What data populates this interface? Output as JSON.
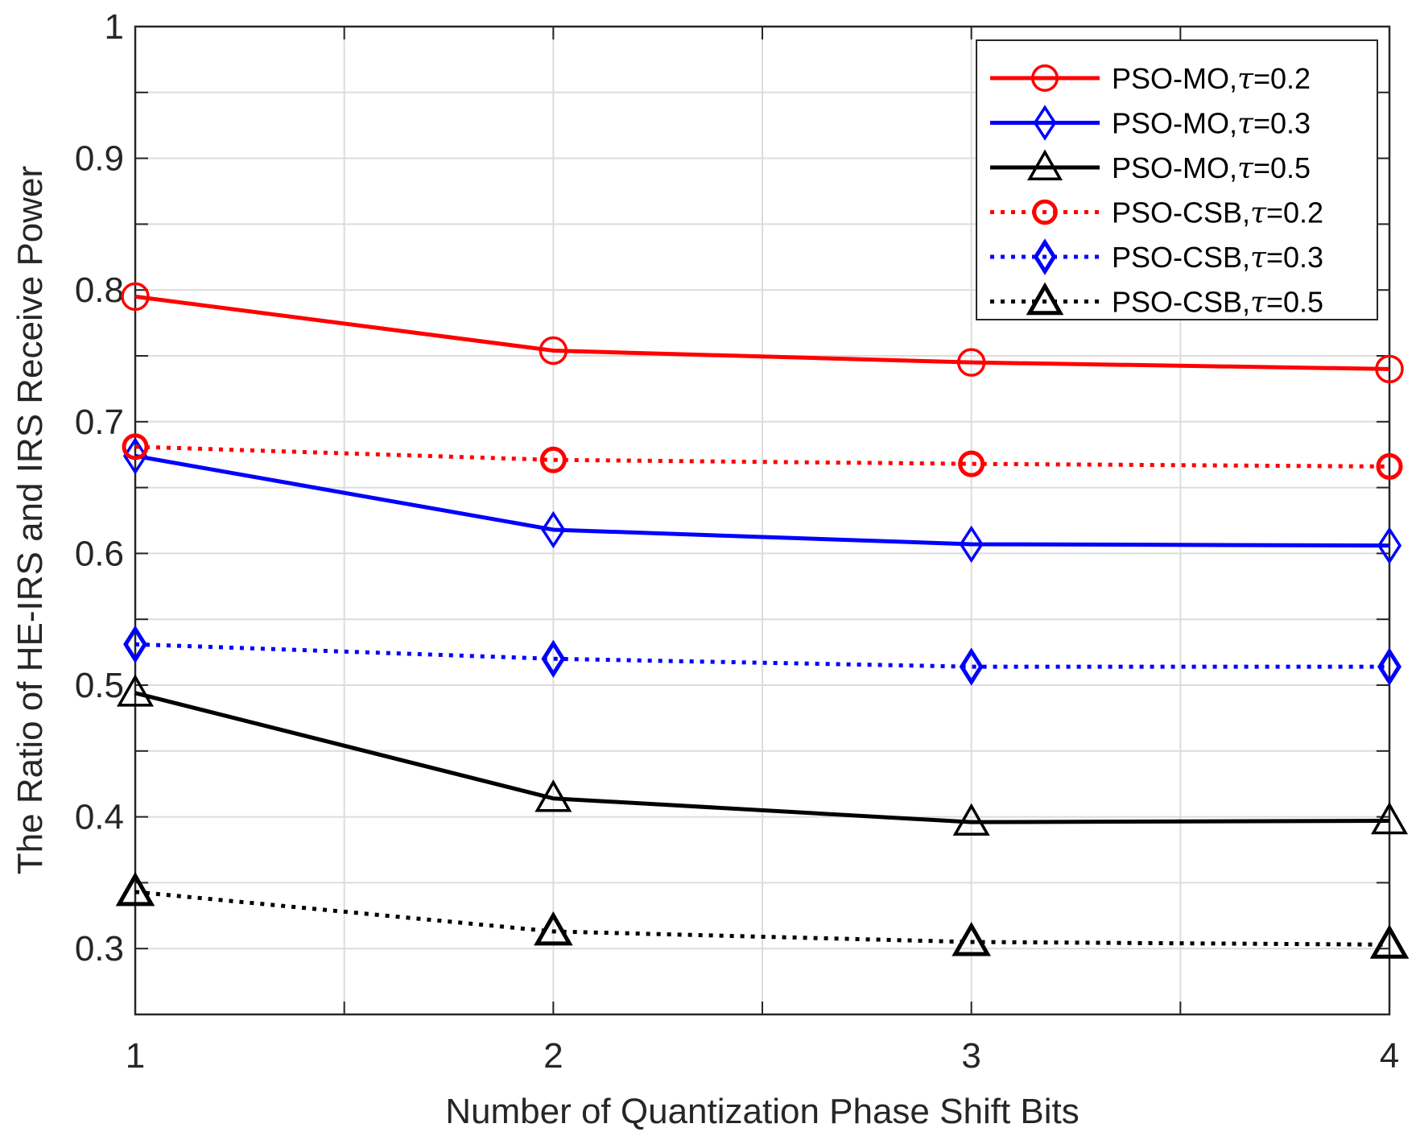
{
  "chart_data": {
    "type": "line",
    "title": "",
    "xlabel": "Number of Quantization Phase Shift Bits",
    "ylabel": "The Ratio of HE-IRS and IRS Receive Power",
    "x": [
      1,
      2,
      3,
      4
    ],
    "xlim": [
      1,
      4
    ],
    "ylim": [
      0.25,
      1
    ],
    "xticks": [
      1,
      2,
      3,
      4
    ],
    "yticks": [
      0.3,
      0.4,
      0.5,
      0.6,
      0.7,
      0.8,
      0.9,
      1
    ],
    "xtick_labels": [
      "1",
      "2",
      "3",
      "4"
    ],
    "ytick_labels": [
      "0.3",
      "0.4",
      "0.5",
      "0.6",
      "0.7",
      "0.8",
      "0.9",
      "1"
    ],
    "grid": true,
    "legend_position": "top-right",
    "series": [
      {
        "name": "PSO-MO,τ=0.2",
        "label_prefix": "PSO-MO,",
        "label_symbol": "τ",
        "label_suffix": "=0.2",
        "values": [
          0.795,
          0.754,
          0.745,
          0.74
        ],
        "color": "#ff0000",
        "line_style": "solid",
        "marker": "circle"
      },
      {
        "name": "PSO-MO,τ=0.3",
        "label_prefix": "PSO-MO,",
        "label_symbol": "τ",
        "label_suffix": "=0.3",
        "values": [
          0.674,
          0.618,
          0.607,
          0.606
        ],
        "color": "#0000ff",
        "line_style": "solid",
        "marker": "diamond"
      },
      {
        "name": "PSO-MO,τ=0.5",
        "label_prefix": "PSO-MO,",
        "label_symbol": "τ",
        "label_suffix": "=0.5",
        "values": [
          0.494,
          0.414,
          0.396,
          0.397
        ],
        "color": "#000000",
        "line_style": "solid",
        "marker": "triangle"
      },
      {
        "name": "PSO-CSB,τ=0.2",
        "label_prefix": "PSO-CSB,",
        "label_symbol": "τ",
        "label_suffix": "=0.2",
        "values": [
          0.681,
          0.671,
          0.668,
          0.666
        ],
        "color": "#ff0000",
        "line_style": "dotted",
        "marker": "circle"
      },
      {
        "name": "PSO-CSB,τ=0.3",
        "label_prefix": "PSO-CSB,",
        "label_symbol": "τ",
        "label_suffix": "=0.3",
        "values": [
          0.531,
          0.52,
          0.514,
          0.514
        ],
        "color": "#0000ff",
        "line_style": "dotted",
        "marker": "diamond"
      },
      {
        "name": "PSO-CSB,τ=0.5",
        "label_prefix": "PSO-CSB,",
        "label_symbol": "τ",
        "label_suffix": "=0.5",
        "values": [
          0.343,
          0.313,
          0.305,
          0.303
        ],
        "color": "#000000",
        "line_style": "dotted",
        "marker": "triangle"
      }
    ]
  }
}
